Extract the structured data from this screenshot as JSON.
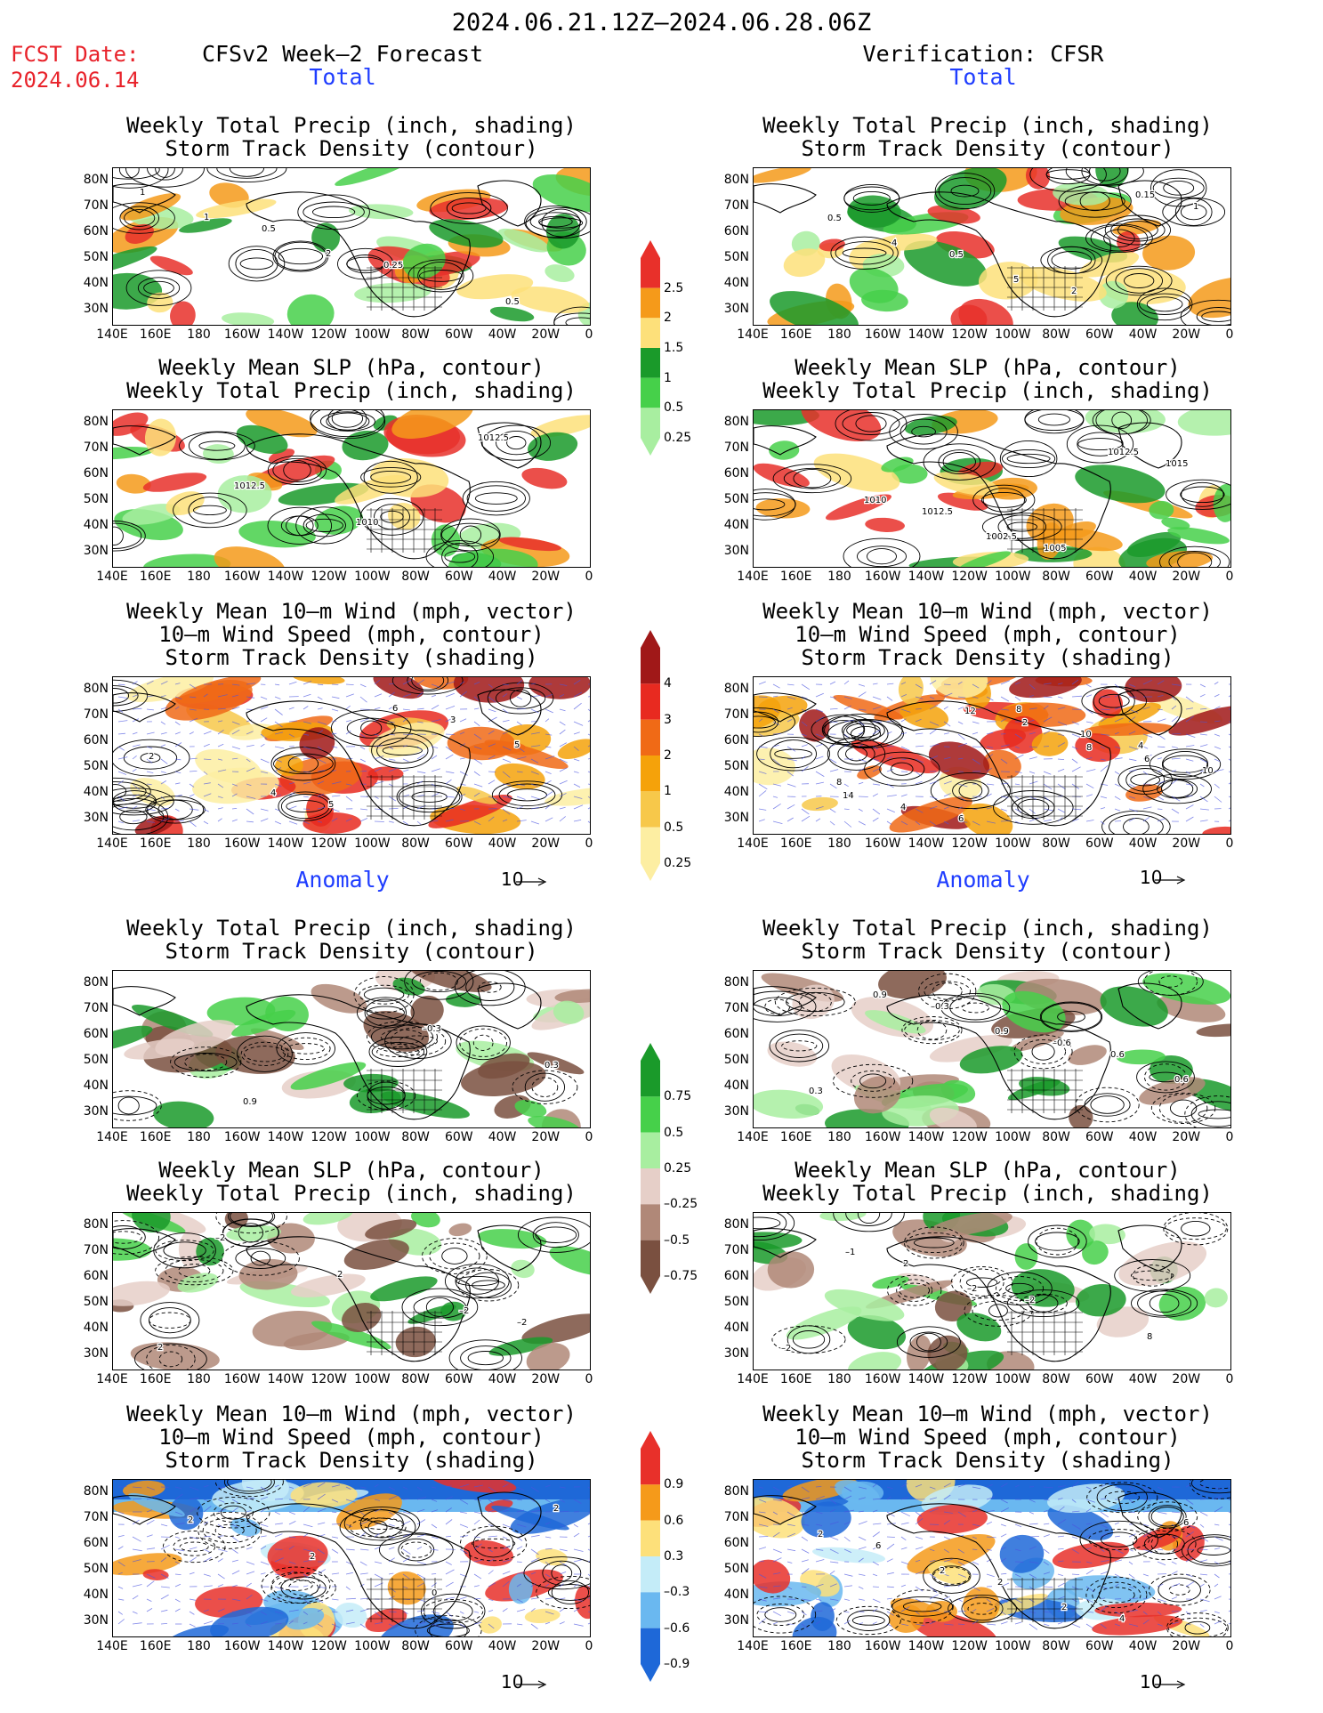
{
  "header": {
    "period": "2024.06.21.12Z–2024.06.28.06Z",
    "fcst_label": "FCST Date:",
    "fcst_date": "2024.06.14",
    "left_title": "CFSv2 Week–2 Forecast",
    "right_title": "Verification: CFSR",
    "total_label": "Total",
    "anomaly_label": "Anomaly"
  },
  "panel_titles": {
    "precip_storm": [
      "Weekly Total Precip (inch, shading)",
      "Storm Track Density (contour)"
    ],
    "slp_precip": [
      "Weekly Mean SLP (hPa, contour)",
      "Weekly Total Precip (inch, shading)"
    ],
    "wind_storm": [
      "Weekly Mean 10–m Wind (mph, vector)",
      "10–m Wind Speed (mph, contour)",
      "Storm Track Density (shading)"
    ]
  },
  "axes": {
    "lat_ticks": [
      "80N",
      "70N",
      "60N",
      "50N",
      "40N",
      "30N"
    ],
    "lon_ticks": [
      "140E",
      "160E",
      "180",
      "160W",
      "140W",
      "120W",
      "100W",
      "80W",
      "60W",
      "40W",
      "20W",
      "0"
    ]
  },
  "vector_reference": "10",
  "colorbars": {
    "precip_total": {
      "labels": [
        "2.5",
        "2",
        "1.5",
        "1",
        "0.5",
        "0.25"
      ],
      "colors": [
        "#e8302a",
        "#f59a1a",
        "#fde07a",
        "#1a9a2a",
        "#46d04a",
        "#a8eea0"
      ]
    },
    "storm_total": {
      "labels": [
        "4",
        "3",
        "2",
        "1",
        "0.5",
        "0.25"
      ],
      "colors": [
        "#a01818",
        "#e82a20",
        "#f06a16",
        "#f5a20a",
        "#f7c84a",
        "#fdeea2"
      ]
    },
    "precip_anom": {
      "labels": [
        "0.75",
        "0.5",
        "0.25",
        "–0.25",
        "–0.5",
        "–0.75"
      ],
      "colors": [
        "#1a9a2a",
        "#46d04a",
        "#a8eea0",
        "#e6cfc8",
        "#b08878",
        "#7a5040"
      ]
    },
    "storm_anom": {
      "labels": [
        "0.9",
        "0.6",
        "0.3",
        "–0.3",
        "–0.6",
        "–0.9"
      ],
      "colors": [
        "#e8302a",
        "#f59a1a",
        "#fde07a",
        "#c4ecf8",
        "#6ab8f0",
        "#1e68d8"
      ]
    }
  },
  "contour_labels": {
    "f_total_precip": [
      "1",
      "0.5",
      "0.25",
      "0.5",
      "1",
      "2"
    ],
    "v_total_precip": [
      "0.5",
      "0.5",
      "2",
      "1",
      "4",
      "5",
      "0.15"
    ],
    "f_total_slp": [
      "1012.5",
      "1010",
      "1012.5"
    ],
    "v_total_slp": [
      "1012.5",
      "1005",
      "1015",
      "1010",
      "1002.5",
      "1012.5"
    ],
    "f_total_wind": [
      "5",
      "3",
      "2",
      "4",
      "6",
      "5"
    ],
    "v_total_wind": [
      "8",
      "4",
      "8",
      "6",
      "10",
      "10",
      "4",
      "2",
      "6",
      "14",
      "12",
      "8"
    ],
    "f_anom_precip": [
      "–0.3",
      "0.3",
      "0.9"
    ],
    "v_anom_precip": [
      "0.6",
      "0.3",
      "–0.3",
      "–0.6",
      "0.6",
      "0.9",
      "0.9"
    ],
    "f_anom_slp": [
      "–2",
      "–2",
      "2",
      "–2",
      "2"
    ],
    "v_anom_slp": [
      "–2",
      "2",
      "–2",
      "8",
      "–1",
      "–2"
    ],
    "f_anom_wind": [
      "2",
      "2",
      "0",
      "2"
    ],
    "v_anom_wind": [
      "6",
      "2",
      "4",
      "2",
      "2",
      "2",
      "6"
    ]
  }
}
